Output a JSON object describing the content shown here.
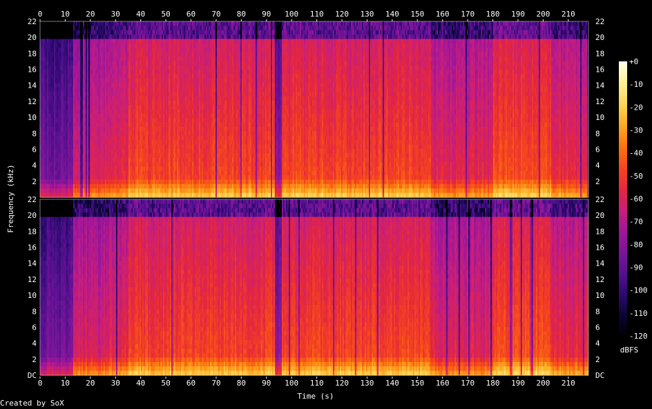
{
  "chart_data": {
    "type": "heatmap",
    "xlabel": "Time (s)",
    "ylabel": "Frequency (kHz)",
    "xlim": [
      0,
      218
    ],
    "x_ticks": [
      "0",
      "10",
      "20",
      "30",
      "40",
      "50",
      "60",
      "70",
      "80",
      "90",
      "100",
      "110",
      "120",
      "130",
      "140",
      "150",
      "160",
      "170",
      "180",
      "190",
      "200",
      "210"
    ],
    "channels": [
      {
        "channel": 1,
        "ylim": [
          0,
          22
        ],
        "y_tick_values": [
          2,
          4,
          6,
          8,
          10,
          12,
          14,
          16,
          18,
          20,
          22
        ],
        "y_ticks": [
          "2",
          "4",
          "6",
          "8",
          "10",
          "12",
          "14",
          "16",
          "18",
          "20",
          "22"
        ]
      },
      {
        "channel": 2,
        "ylim": [
          0,
          22
        ],
        "y_tick_values": [
          0,
          2,
          4,
          6,
          8,
          10,
          12,
          14,
          16,
          18,
          20,
          22
        ],
        "y_ticks": [
          "DC",
          "2",
          "4",
          "6",
          "8",
          "10",
          "12",
          "14",
          "16",
          "18",
          "20",
          "22"
        ]
      }
    ],
    "colorbar": {
      "label": "dBFS",
      "range": [
        -120,
        0
      ],
      "ticks": [
        "+0",
        "-10",
        "-20",
        "-30",
        "-40",
        "-50",
        "-60",
        "-70",
        "-80",
        "-90",
        "-100",
        "-110",
        "-120"
      ]
    },
    "segments": [
      {
        "t0": 0,
        "t1": 13,
        "level": -82
      },
      {
        "t0": 13,
        "t1": 25,
        "level": -58
      },
      {
        "t0": 25,
        "t1": 35,
        "level": -55
      },
      {
        "t0": 35,
        "t1": 93,
        "level": -45
      },
      {
        "t0": 93,
        "t1": 96,
        "level": -75
      },
      {
        "t0": 96,
        "t1": 155,
        "level": -45
      },
      {
        "t0": 155,
        "t1": 180,
        "level": -55
      },
      {
        "t0": 180,
        "t1": 203,
        "level": -42
      },
      {
        "t0": 203,
        "t1": 218,
        "level": -52
      }
    ],
    "colormap": [
      "#000000",
      "#0a0530",
      "#2a0a6e",
      "#55108f",
      "#7a1598",
      "#a0169a",
      "#c81e7a",
      "#e4273f",
      "#f5451e",
      "#fb7410",
      "#fda821",
      "#fed452",
      "#ffef96",
      "#ffffe6"
    ]
  },
  "footer": {
    "credit": "Created by SoX"
  }
}
